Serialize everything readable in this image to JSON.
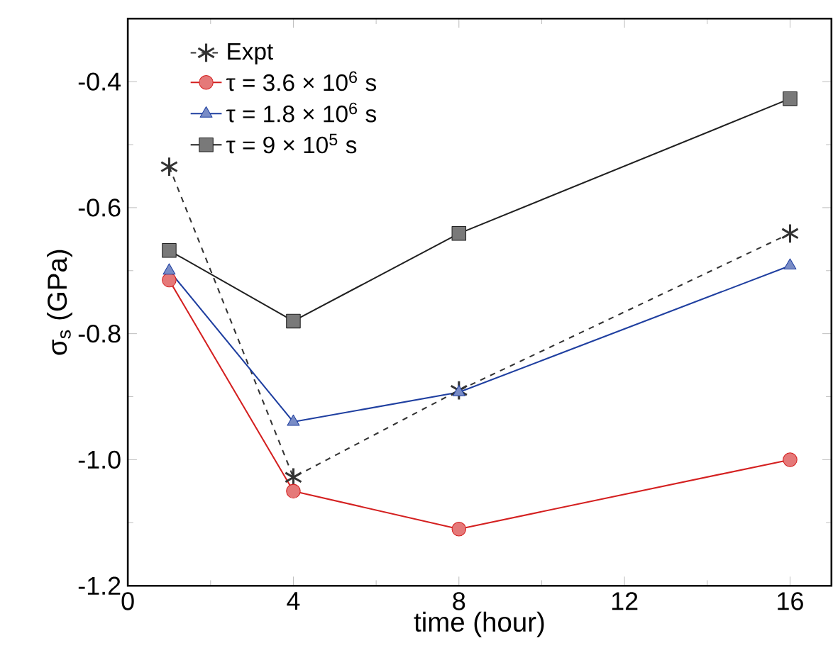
{
  "chart_data": {
    "type": "line",
    "xlabel": "time (hour)",
    "ylabel": "σ$_{s}$ (GPa)",
    "xlim": [
      0,
      17
    ],
    "xticks": [
      0,
      4,
      8,
      12,
      16
    ],
    "ylim": [
      -1.2,
      -0.3
    ],
    "yticks": [
      {
        "value": -1.2,
        "label": "-1.2"
      },
      {
        "value": -1.0,
        "label": "-1.0"
      },
      {
        "value": -0.8,
        "label": "-0.8"
      },
      {
        "value": -0.6,
        "label": "-0.6"
      },
      {
        "value": -0.4,
        "label": "-0.4"
      }
    ],
    "legend": "top left",
    "grid": false,
    "line_style": "solid",
    "x": [
      1,
      4,
      8,
      16
    ],
    "series": [
      {
        "name": "Expt",
        "color": "#333333",
        "marker": "cross",
        "line_style": "dashed",
        "values": [
          -0.535,
          -1.028,
          -0.89,
          -0.641
        ]
      },
      {
        "name": "τ = 3.6 × 10$^{6}$ s",
        "color": "#d42020",
        "marker": "circle",
        "values": [
          -0.715,
          -1.05,
          -1.11,
          -1.0
        ]
      },
      {
        "name": "τ = 1.8 × 10$^{6}$ s",
        "color": "#1f3fa0",
        "marker": "triangle",
        "values": [
          -0.7,
          -0.94,
          -0.893,
          -0.692
        ]
      },
      {
        "name": "τ = 9 × 10$^{5}$ s",
        "color": "#202020",
        "marker": "square",
        "values": [
          -0.668,
          -0.78,
          -0.641,
          -0.427
        ]
      }
    ]
  }
}
